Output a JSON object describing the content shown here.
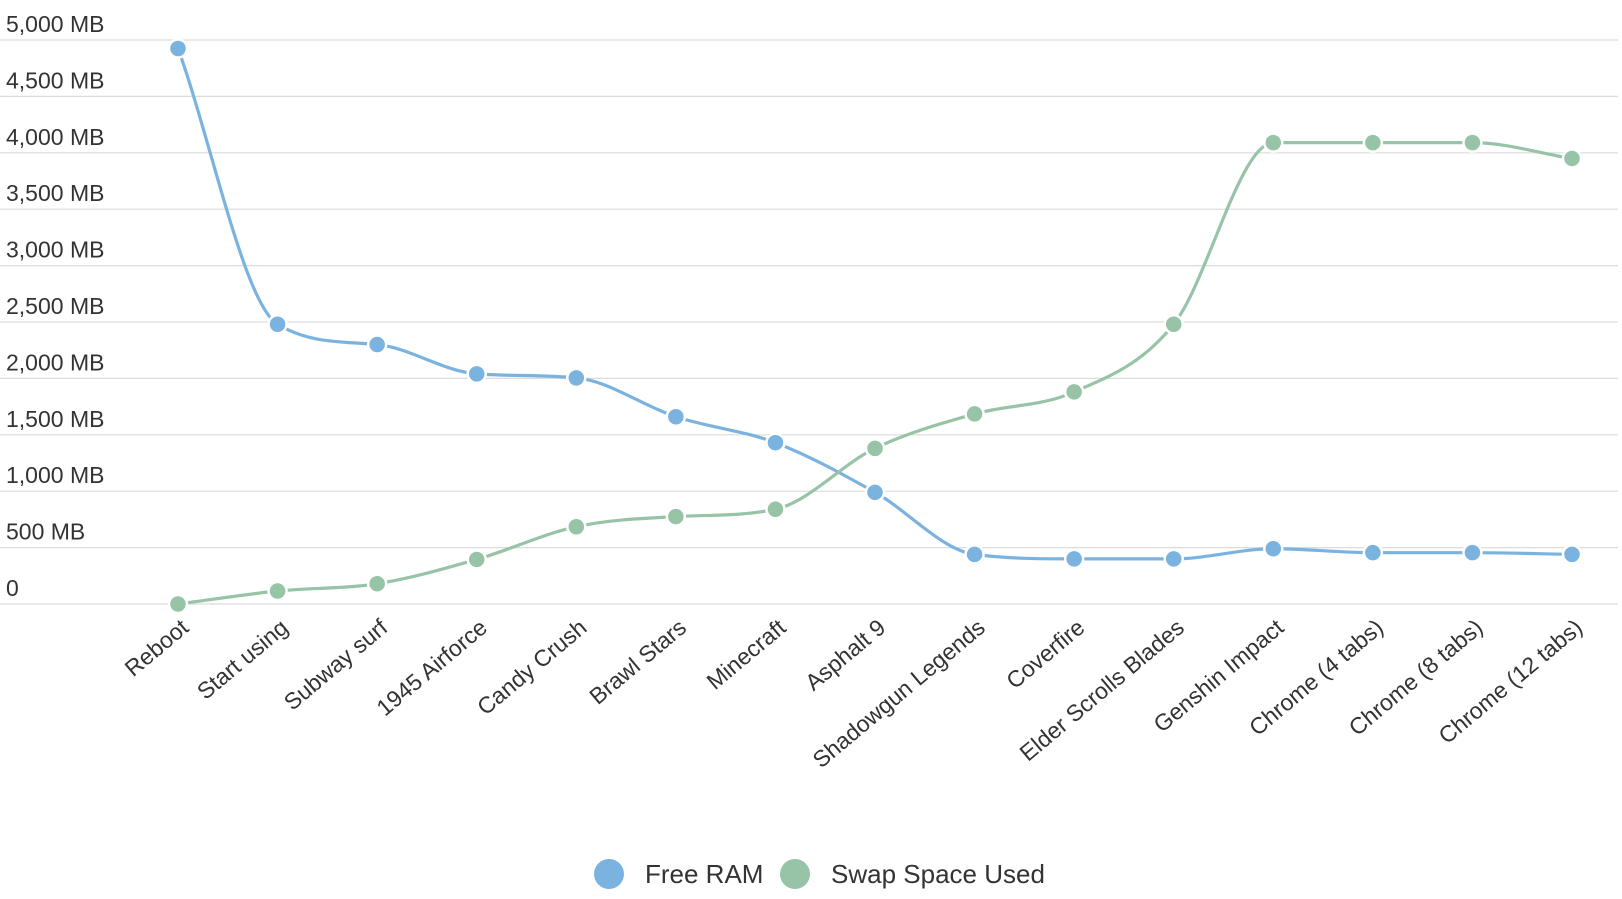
{
  "chart_data": {
    "type": "line",
    "title": "",
    "xlabel": "",
    "ylabel": "",
    "categories": [
      "Reboot",
      "Start using",
      "Subway surf",
      "1945 Airforce",
      "Candy Crush",
      "Brawl Stars",
      "Minecraft",
      "Asphalt 9",
      "Shadowgun Legends",
      "Coverfire",
      "Elder Scrolls Blades",
      "Genshin Impact",
      "Chrome (4 tabs)",
      "Chrome (8 tabs)",
      "Chrome (12 tabs)"
    ],
    "series": [
      {
        "name": "Free RAM",
        "color": "#7ab3df",
        "values": [
          4925,
          2480,
          2300,
          2040,
          2005,
          1660,
          1430,
          990,
          440,
          400,
          400,
          490,
          455,
          455,
          440
        ]
      },
      {
        "name": "Swap Space Used",
        "color": "#97c3a7",
        "values": [
          0,
          115,
          180,
          395,
          685,
          775,
          840,
          1380,
          1685,
          1880,
          2480,
          4090,
          4090,
          4090,
          3950
        ]
      }
    ],
    "ylim": [
      0,
      5000
    ],
    "yticks": [
      0,
      500,
      1000,
      1500,
      2000,
      2500,
      3000,
      3500,
      4000,
      4500,
      5000
    ],
    "ytick_labels": [
      "0",
      "500 MB",
      "1,000 MB",
      "1,500 MB",
      "2,000 MB",
      "2,500 MB",
      "3,000 MB",
      "3,500 MB",
      "4,000 MB",
      "4,500 MB",
      "5,000 MB"
    ],
    "grid": true,
    "legend": "bottom-center",
    "curve": "smooth"
  }
}
